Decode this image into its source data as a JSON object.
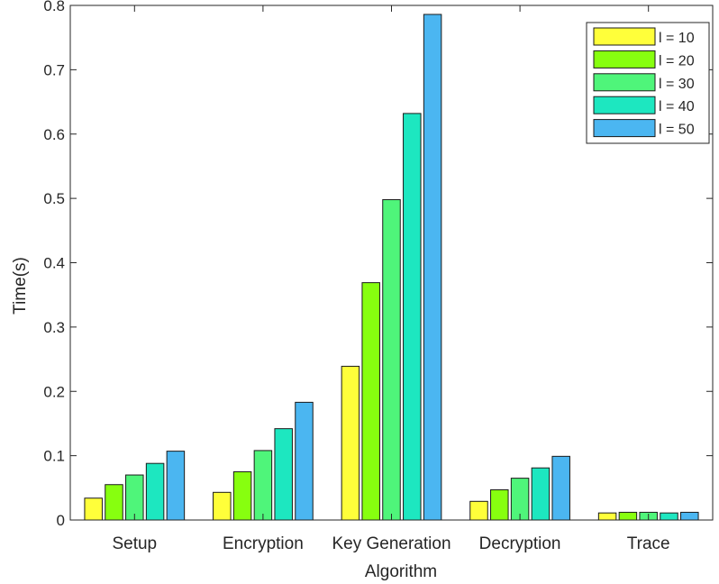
{
  "chart_data": {
    "type": "bar",
    "title": "",
    "xlabel": "Algorithm",
    "ylabel": "Time(s)",
    "ylim": [
      0,
      0.8
    ],
    "yticks": [
      0,
      0.1,
      0.2,
      0.3,
      0.4,
      0.5,
      0.6,
      0.7,
      0.8
    ],
    "ytick_labels": [
      "0",
      "0.1",
      "0.2",
      "0.3",
      "0.4",
      "0.5",
      "0.6",
      "0.7",
      "0.8"
    ],
    "categories": [
      "Setup",
      "Encryption",
      "Key Generation",
      "Decryption",
      "Trace"
    ],
    "grid": false,
    "legend_position": "top-right",
    "series": [
      {
        "name": "l = 10",
        "color": "#ffff3a",
        "values": [
          0.034,
          0.043,
          0.239,
          0.029,
          0.011
        ]
      },
      {
        "name": "l = 20",
        "color": "#87ff0f",
        "values": [
          0.055,
          0.075,
          0.369,
          0.047,
          0.012
        ]
      },
      {
        "name": "l = 30",
        "color": "#4ff57a",
        "values": [
          0.07,
          0.108,
          0.498,
          0.065,
          0.012
        ]
      },
      {
        "name": "l = 40",
        "color": "#1de7c0",
        "values": [
          0.088,
          0.142,
          0.632,
          0.081,
          0.011
        ]
      },
      {
        "name": "l = 50",
        "color": "#4bb6f1",
        "values": [
          0.107,
          0.183,
          0.786,
          0.099,
          0.012
        ]
      }
    ]
  }
}
